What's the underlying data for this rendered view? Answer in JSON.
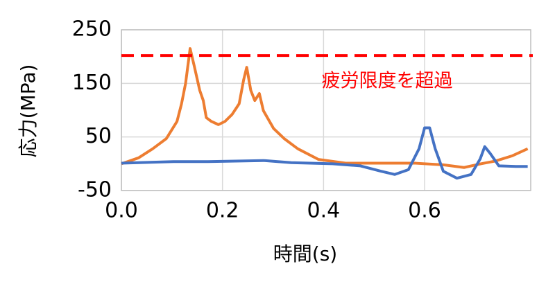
{
  "chart_data": {
    "type": "line",
    "x_label": "時間(s)",
    "y_label": "応力(MPa)",
    "annotation": {
      "text": "疲労限度を超過",
      "color": "#ff0000"
    },
    "reference_line": {
      "value": 202,
      "color": "#ff0000"
    },
    "xlim": [
      0,
      0.81
    ],
    "ylim": [
      -50,
      250
    ],
    "xticks": [
      {
        "value": 0,
        "label": "0.0"
      },
      0.2,
      0.4,
      0.6
    ],
    "yticks": [
      250,
      150,
      50,
      -50
    ],
    "grid": true,
    "series": [
      {
        "color": "#ed7d31",
        "x": [
          0,
          0.034,
          0.062,
          0.089,
          0.11,
          0.119,
          0.127,
          0.136,
          0.144,
          0.155,
          0.162,
          0.168,
          0.178,
          0.192,
          0.205,
          0.219,
          0.233,
          0.242,
          0.248,
          0.256,
          0.264,
          0.273,
          0.281,
          0.301,
          0.322,
          0.349,
          0.39,
          0.445,
          0.514,
          0.582,
          0.637,
          0.678,
          0.712,
          0.74,
          0.774,
          0.804
        ],
        "values": [
          0,
          11,
          28,
          47,
          79,
          112,
          150,
          215,
          183,
          137,
          118,
          86,
          79,
          73,
          79,
          92,
          112,
          157,
          180,
          137,
          118,
          131,
          99,
          66,
          47,
          28,
          8,
          1,
          1,
          1,
          -2,
          -7,
          0,
          5,
          15,
          28
        ]
      },
      {
        "color": "#4472c4",
        "x": [
          0,
          0.103,
          0.171,
          0.281,
          0.336,
          0.418,
          0.473,
          0.514,
          0.541,
          0.568,
          0.589,
          0.6,
          0.61,
          0.621,
          0.637,
          0.664,
          0.692,
          0.71,
          0.719,
          0.73,
          0.747,
          0.781,
          0.804
        ],
        "values": [
          1,
          4,
          4,
          6,
          2,
          0,
          -4,
          -14,
          -20,
          -11,
          28,
          67,
          67,
          28,
          -14,
          -27,
          -20,
          9,
          32,
          19,
          -4,
          -5,
          -5
        ]
      }
    ]
  }
}
